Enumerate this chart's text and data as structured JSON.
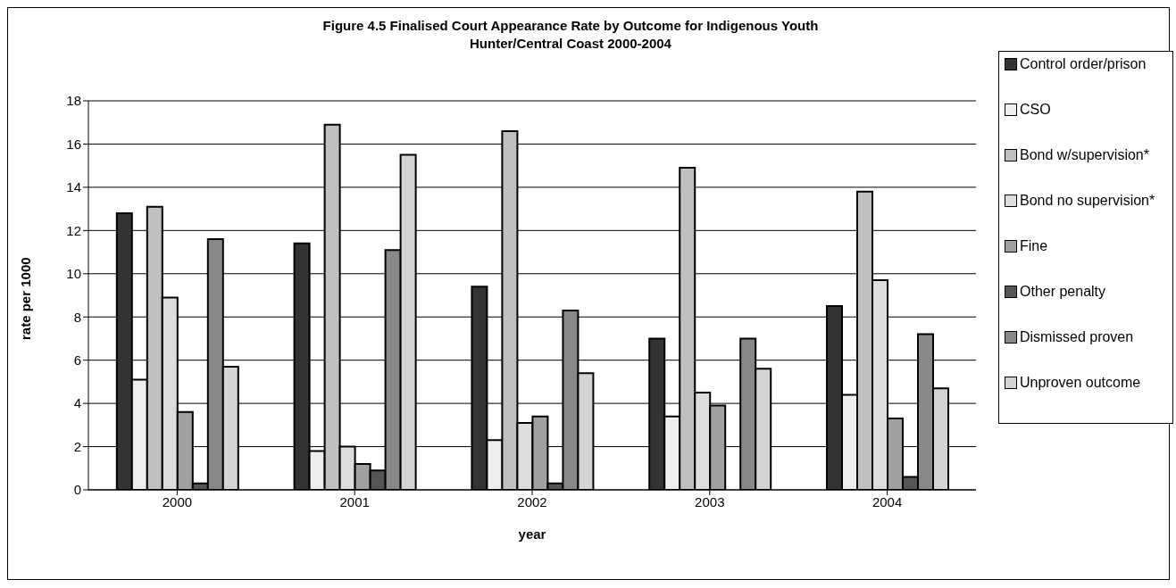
{
  "chart_data": {
    "type": "bar",
    "title": "Figure 4.5 Finalised Court Appearance Rate by Outcome for Indigenous Youth Hunter/Central Coast 2000-2004",
    "xlabel": "year",
    "ylabel": "rate per 1000",
    "categories": [
      "2000",
      "2001",
      "2002",
      "2003",
      "2004"
    ],
    "series": [
      {
        "name": "Control order/prison",
        "color": "#333333",
        "values": [
          12.8,
          11.4,
          9.4,
          7.0,
          8.5
        ]
      },
      {
        "name": "CSO",
        "color": "#eeeeee",
        "values": [
          5.1,
          1.8,
          2.3,
          3.4,
          4.4
        ]
      },
      {
        "name": "Bond w/supervision*",
        "color": "#c0c0c0",
        "values": [
          13.1,
          16.9,
          16.6,
          14.9,
          13.8
        ]
      },
      {
        "name": "Bond no supervision*",
        "color": "#dddddd",
        "values": [
          8.9,
          2.0,
          3.1,
          4.5,
          9.7
        ]
      },
      {
        "name": "Fine",
        "color": "#a0a0a0",
        "values": [
          3.6,
          1.2,
          3.4,
          3.9,
          3.3
        ]
      },
      {
        "name": "Other penalty",
        "color": "#555555",
        "values": [
          0.3,
          0.9,
          0.3,
          null,
          0.6
        ]
      },
      {
        "name": "Dismissed proven",
        "color": "#888888",
        "values": [
          11.6,
          11.1,
          8.3,
          7.0,
          7.2
        ]
      },
      {
        "name": "Unproven outcome",
        "color": "#d4d4d4",
        "values": [
          5.7,
          15.5,
          5.4,
          5.6,
          4.7
        ]
      }
    ],
    "ylim": [
      0,
      18
    ],
    "yticks": [
      0,
      2,
      4,
      6,
      8,
      10,
      12,
      14,
      16,
      18
    ],
    "grid": "y",
    "legend": "right"
  }
}
